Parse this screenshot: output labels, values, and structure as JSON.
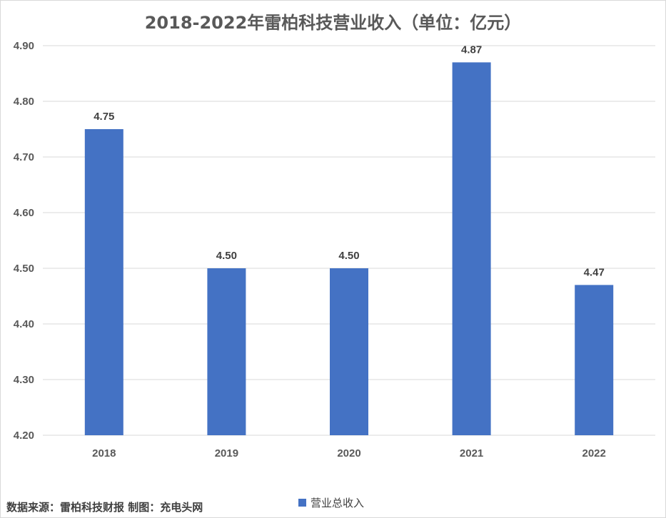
{
  "title": "2018-2022年雷柏科技营业收入（单位：亿元）",
  "source_note": "数据来源：雷柏科技财报 制图：充电头网",
  "colors": {
    "bar": "#4472c4",
    "grid": "#d9d9d9"
  },
  "chart_data": {
    "type": "bar",
    "title": "2018-2022年雷柏科技营业收入（单位：亿元）",
    "categories": [
      "2018",
      "2019",
      "2020",
      "2021",
      "2022"
    ],
    "series": [
      {
        "name": "营业总收入",
        "values": [
          4.75,
          4.5,
          4.5,
          4.87,
          4.47
        ]
      }
    ],
    "data_labels": [
      "4.75",
      "4.50",
      "4.50",
      "4.87",
      "4.47"
    ],
    "ylim": [
      4.2,
      4.9
    ],
    "yticks": [
      "4.20",
      "4.30",
      "4.40",
      "4.50",
      "4.60",
      "4.70",
      "4.80",
      "4.90"
    ],
    "grid": true,
    "legend_position": "bottom",
    "xlabel": "",
    "ylabel": ""
  }
}
